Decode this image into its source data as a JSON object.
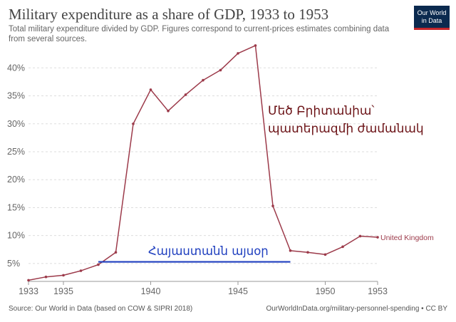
{
  "header": {
    "title": "Military expenditure as a share of GDP, 1933 to 1953",
    "subtitle": "Total military expenditure divided by GDP. Figures correspond to current-prices estimates combining data from several sources.",
    "logo_line1": "Our World",
    "logo_line2": "in Data"
  },
  "footer": {
    "source": "Source: Our World in Data (based on COW & SIPRI 2018)",
    "url": "OurWorldInData.org/military-personnel-spending • CC BY"
  },
  "colors": {
    "line": "#9c3a4a",
    "blue_annotation": "#1f3fbf",
    "red_annotation": "#6b1216",
    "grid": "#dddddd",
    "logo_bg": "#0b2a4f",
    "logo_accent": "#c4262b"
  },
  "annotations": {
    "red_line1": "Մեծ Բրիտանիա՝",
    "red_line2": "պատերազմի ժամանակ",
    "blue_text": "Հայաստանն այսօր",
    "blue_line_value": 5.3,
    "blue_line_x_range": [
      1937,
      1948
    ]
  },
  "chart_data": {
    "type": "line",
    "title": "Military expenditure as a share of GDP, 1933 to 1953",
    "xlabel": "",
    "ylabel": "",
    "xlim": [
      1933,
      1953
    ],
    "ylim": [
      1.8,
      44.5
    ],
    "x_ticks": [
      1933,
      1935,
      1940,
      1945,
      1950,
      1953
    ],
    "y_ticks": [
      5,
      10,
      15,
      20,
      25,
      30,
      35,
      40
    ],
    "y_tick_labels": [
      "5%",
      "10%",
      "15%",
      "20%",
      "25%",
      "30%",
      "35%",
      "40%"
    ],
    "series": [
      {
        "name": "United Kingdom",
        "x": [
          1933,
          1934,
          1935,
          1936,
          1937,
          1938,
          1939,
          1940,
          1941,
          1942,
          1943,
          1944,
          1945,
          1946,
          1947,
          1948,
          1949,
          1950,
          1951,
          1952,
          1953
        ],
        "values": [
          2.0,
          2.6,
          2.9,
          3.7,
          4.8,
          7.0,
          30.0,
          36.1,
          32.3,
          35.2,
          37.8,
          39.6,
          42.6,
          44.0,
          15.3,
          7.3,
          7.0,
          6.6,
          8.0,
          9.9,
          9.7
        ]
      }
    ]
  }
}
